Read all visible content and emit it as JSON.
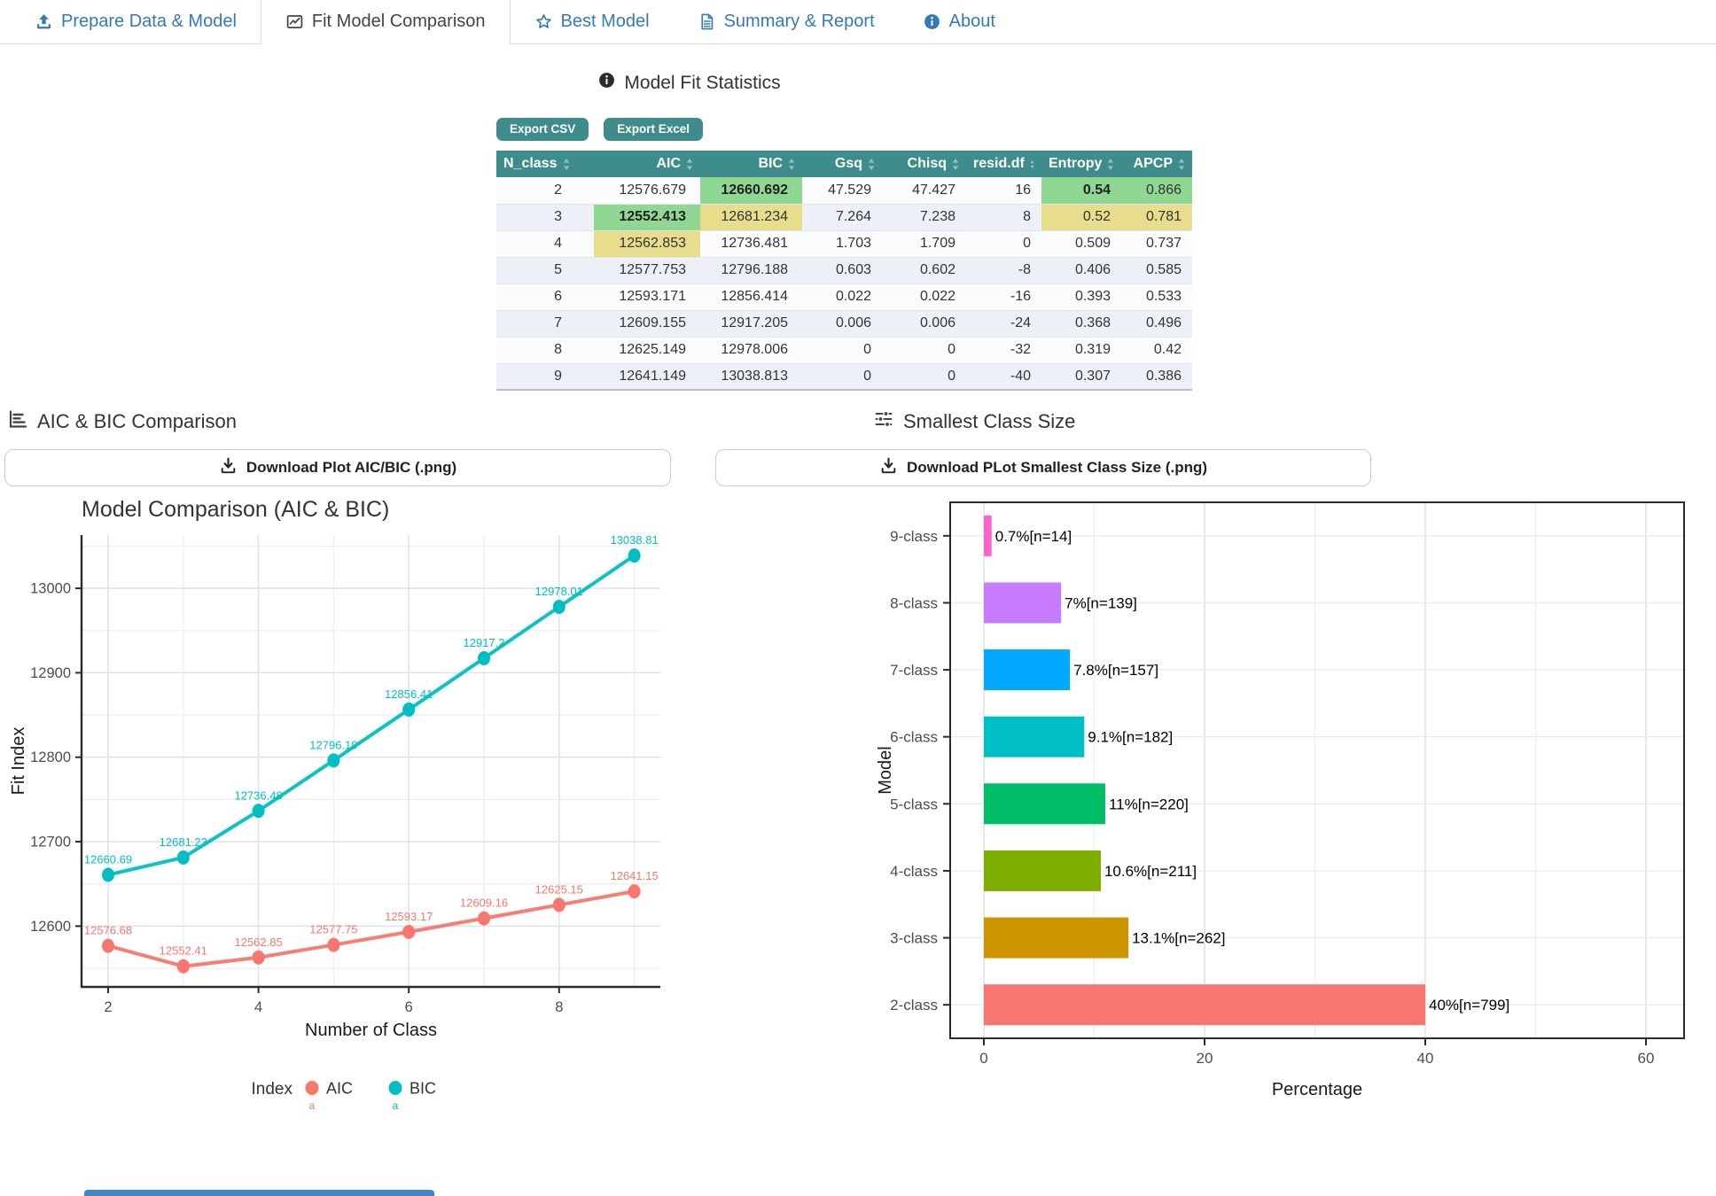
{
  "tabs": [
    {
      "label": "Prepare Data & Model",
      "icon": "upload-icon",
      "active": false
    },
    {
      "label": "Fit Model Comparison",
      "icon": "chart-line-icon",
      "active": true
    },
    {
      "label": "Best Model",
      "icon": "star-icon",
      "active": false
    },
    {
      "label": "Summary & Report",
      "icon": "file-lines-icon",
      "active": false
    },
    {
      "label": "About",
      "icon": "info-circle-icon",
      "active": false
    }
  ],
  "stats_section": {
    "title": "Model Fit Statistics",
    "export_csv_label": "Export CSV",
    "export_excel_label": "Export Excel",
    "table": {
      "columns": [
        "N_class",
        "AIC",
        "BIC",
        "Gsq",
        "Chisq",
        "resid.df",
        "Entropy",
        "APCP"
      ],
      "rows": [
        [
          "2",
          "12576.679",
          "12660.692",
          "47.529",
          "47.427",
          "16",
          "0.54",
          "0.866"
        ],
        [
          "3",
          "12552.413",
          "12681.234",
          "7.264",
          "7.238",
          "8",
          "0.52",
          "0.781"
        ],
        [
          "4",
          "12562.853",
          "12736.481",
          "1.703",
          "1.709",
          "0",
          "0.509",
          "0.737"
        ],
        [
          "5",
          "12577.753",
          "12796.188",
          "0.603",
          "0.602",
          "-8",
          "0.406",
          "0.585"
        ],
        [
          "6",
          "12593.171",
          "12856.414",
          "0.022",
          "0.022",
          "-16",
          "0.393",
          "0.533"
        ],
        [
          "7",
          "12609.155",
          "12917.205",
          "0.006",
          "0.006",
          "-24",
          "0.368",
          "0.496"
        ],
        [
          "8",
          "12625.149",
          "12978.006",
          "0",
          "0",
          "-32",
          "0.319",
          "0.42"
        ],
        [
          "9",
          "12641.149",
          "13038.813",
          "0",
          "0",
          "-40",
          "0.307",
          "0.386"
        ]
      ],
      "highlights": [
        {
          "row": 0,
          "col": 2,
          "type": "green",
          "bold": true
        },
        {
          "row": 0,
          "col": 6,
          "type": "green",
          "bold": true
        },
        {
          "row": 0,
          "col": 7,
          "type": "green",
          "bold": false
        },
        {
          "row": 1,
          "col": 1,
          "type": "green",
          "bold": true
        },
        {
          "row": 1,
          "col": 2,
          "type": "yellow",
          "bold": false
        },
        {
          "row": 1,
          "col": 6,
          "type": "yellow",
          "bold": false
        },
        {
          "row": 1,
          "col": 7,
          "type": "yellow",
          "bold": false
        },
        {
          "row": 2,
          "col": 1,
          "type": "yellow",
          "bold": false
        }
      ]
    }
  },
  "left_section": {
    "heading": "AIC & BIC Comparison",
    "download_label": "Download Plot AIC/BIC (.png)"
  },
  "right_section": {
    "heading": "Smallest Class Size",
    "download_label": "Download PLot Smallest Class Size (.png)"
  },
  "chart_data": [
    {
      "type": "line",
      "title": "Model Comparison (AIC & BIC)",
      "xlabel": "Number of Class",
      "ylabel": "Fit Index",
      "x": [
        2,
        3,
        4,
        5,
        6,
        7,
        8,
        9
      ],
      "series": [
        {
          "name": "AIC",
          "color": "#F8766D",
          "values": [
            12576.68,
            12552.41,
            12562.85,
            12577.75,
            12593.17,
            12609.16,
            12625.15,
            12641.15
          ],
          "labels": [
            "12576.68",
            "12552.41",
            "12562.85",
            "12577.75",
            "12593.17",
            "12609.16",
            "12625.15",
            "12641.15"
          ]
        },
        {
          "name": "BIC",
          "color": "#00BFC4",
          "values": [
            12660.69,
            12681.23,
            12736.48,
            12796.19,
            12856.41,
            12917.2,
            12978.01,
            13038.81
          ],
          "labels": [
            "12660.69",
            "12681.23",
            "12736.48",
            "12796.19",
            "12856.41",
            "12917.2",
            "12978.01",
            "13038.81"
          ]
        }
      ],
      "xticks": [
        2,
        4,
        6,
        8
      ],
      "yticks": [
        12600,
        12700,
        12800,
        12900,
        13000
      ],
      "ylim": [
        12528,
        13063
      ],
      "grid": true,
      "legend_title": "Index",
      "legend_position": "bottom"
    },
    {
      "type": "bar",
      "orientation": "horizontal",
      "xlabel": "Percentage",
      "ylabel": "Model",
      "categories": [
        "9-class",
        "8-class",
        "7-class",
        "6-class",
        "5-class",
        "4-class",
        "3-class",
        "2-class"
      ],
      "values": [
        0.7,
        7,
        7.8,
        9.1,
        11,
        10.6,
        13.1,
        40
      ],
      "labels": [
        "0.7%[n=14]",
        "7%[n=139]",
        "7.8%[n=157]",
        "9.1%[n=182]",
        "11%[n=220]",
        "10.6%[n=211]",
        "13.1%[n=262]",
        "40%[n=799]"
      ],
      "colors": [
        "#FF61CC",
        "#C77CFF",
        "#00A9FF",
        "#00BFC4",
        "#00BE67",
        "#7CAE00",
        "#CD9600",
        "#F8766D"
      ],
      "xticks": [
        0,
        20,
        40,
        60
      ],
      "xlim": [
        0,
        63
      ],
      "grid": true
    }
  ],
  "theme": {
    "accent_teal": "#3e8c8c",
    "tab_blue": "#337ab7",
    "highlight_green": "#90d794",
    "highlight_yellow": "#e8dc8d",
    "footer_blue": "#4285c4",
    "grid_major": "#e3e3e3",
    "grid_minor": "#f0f0f0"
  }
}
